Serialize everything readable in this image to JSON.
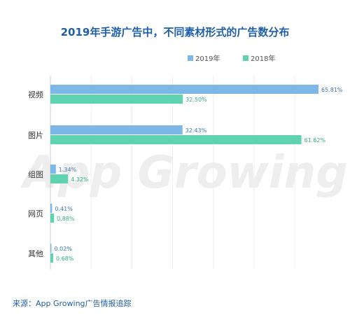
{
  "chart_data": {
    "type": "bar",
    "orientation": "horizontal",
    "title": "2019年手游广告中，不同素材形式的广告数分布",
    "categories": [
      "视频",
      "图片",
      "组图",
      "网页",
      "其他"
    ],
    "series": [
      {
        "name": "2019年",
        "color": "#7db7e8",
        "label_color": "#3a78b8",
        "values": [
          65.81,
          32.43,
          1.34,
          0.41,
          0.02
        ],
        "labels": [
          "65.81%",
          "32.43%",
          "1.34%",
          "0.41%",
          "0.02%"
        ]
      },
      {
        "name": "2018年",
        "color": "#5fd3b0",
        "label_color": "#2fae88",
        "values": [
          32.5,
          61.62,
          4.32,
          0.88,
          0.68
        ],
        "labels": [
          "32.50%",
          "61.62%",
          "4.32%",
          "0.88%",
          "0.68%"
        ]
      }
    ],
    "xlim": [
      0,
      70
    ],
    "grid": true,
    "legend_position": "top-right",
    "watermark": "App Growing"
  },
  "source": "来源：App Growing广告情报追踪"
}
